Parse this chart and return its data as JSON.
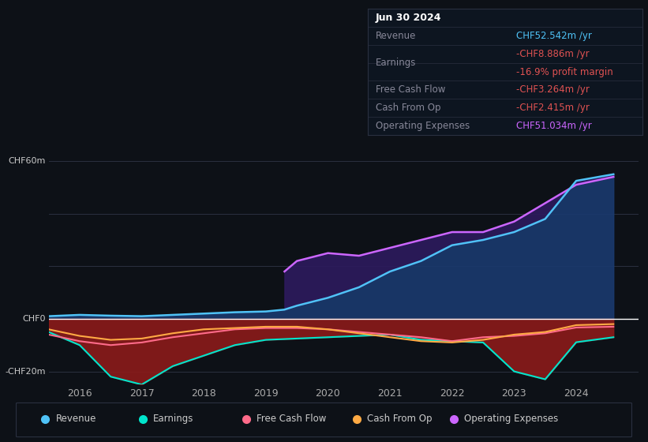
{
  "bg_color": "#0d1117",
  "plot_bg_color": "#0d1117",
  "ylim": [
    -25,
    70
  ],
  "xlim": [
    2015.5,
    2025.0
  ],
  "xticks": [
    2016,
    2017,
    2018,
    2019,
    2020,
    2021,
    2022,
    2023,
    2024
  ],
  "grid_color": "#2a3040",
  "zero_line_color": "#ffffff",
  "info_box": {
    "title": "Jun 30 2024",
    "title_color": "#ffffff",
    "rows": [
      {
        "label": "Revenue",
        "value": "CHF52.542m /yr",
        "value_color": "#4fc3f7"
      },
      {
        "label": "Earnings",
        "value": "-CHF8.886m /yr",
        "value_color": "#e05252"
      },
      {
        "label": "",
        "value": "-16.9% profit margin",
        "value_color": "#e05252"
      },
      {
        "label": "Free Cash Flow",
        "value": "-CHF3.264m /yr",
        "value_color": "#e05252"
      },
      {
        "label": "Cash From Op",
        "value": "-CHF2.415m /yr",
        "value_color": "#e05252"
      },
      {
        "label": "Operating Expenses",
        "value": "CHF51.034m /yr",
        "value_color": "#cc66ff"
      }
    ],
    "label_color": "#888899",
    "bg_color": "#0d1520",
    "border_color": "#2a3040"
  },
  "series": {
    "revenue": {
      "color": "#4fc3f7",
      "fill_color": "#1a3a6e",
      "label": "Revenue",
      "years": [
        2015.5,
        2016.0,
        2016.5,
        2017.0,
        2017.5,
        2018.0,
        2018.5,
        2019.0,
        2019.3,
        2019.5,
        2020.0,
        2020.5,
        2021.0,
        2021.5,
        2022.0,
        2022.5,
        2023.0,
        2023.5,
        2024.0,
        2024.6
      ],
      "values": [
        1.0,
        1.5,
        1.2,
        1.0,
        1.5,
        2.0,
        2.5,
        2.8,
        3.5,
        5.0,
        8.0,
        12.0,
        18.0,
        22.0,
        28.0,
        30.0,
        33.0,
        38.0,
        52.5,
        55.0
      ]
    },
    "earnings": {
      "color": "#00e5cc",
      "label": "Earnings",
      "years": [
        2015.5,
        2016.0,
        2016.5,
        2017.0,
        2017.5,
        2018.0,
        2018.5,
        2019.0,
        2019.5,
        2020.0,
        2020.5,
        2021.0,
        2021.5,
        2022.0,
        2022.5,
        2023.0,
        2023.5,
        2024.0,
        2024.6
      ],
      "values": [
        -5.0,
        -10.0,
        -22.0,
        -25.0,
        -18.0,
        -14.0,
        -10.0,
        -8.0,
        -7.5,
        -7.0,
        -6.5,
        -6.0,
        -8.0,
        -8.5,
        -9.0,
        -20.0,
        -23.0,
        -8.9,
        -7.0
      ]
    },
    "free_cash_flow": {
      "color": "#ff6b8a",
      "label": "Free Cash Flow",
      "years": [
        2015.5,
        2016.0,
        2016.5,
        2017.0,
        2017.5,
        2018.0,
        2018.5,
        2019.0,
        2019.5,
        2020.0,
        2020.5,
        2021.0,
        2021.5,
        2022.0,
        2022.5,
        2023.0,
        2023.5,
        2024.0,
        2024.6
      ],
      "values": [
        -6.0,
        -8.5,
        -10.0,
        -9.0,
        -7.0,
        -5.5,
        -4.0,
        -3.5,
        -3.5,
        -4.0,
        -5.0,
        -6.0,
        -7.0,
        -8.5,
        -7.0,
        -6.5,
        -5.5,
        -3.3,
        -3.0
      ]
    },
    "cash_from_op": {
      "color": "#ffaa44",
      "label": "Cash From Op",
      "years": [
        2015.5,
        2016.0,
        2016.5,
        2017.0,
        2017.5,
        2018.0,
        2018.5,
        2019.0,
        2019.5,
        2020.0,
        2020.5,
        2021.0,
        2021.5,
        2022.0,
        2022.5,
        2023.0,
        2023.5,
        2024.0,
        2024.6
      ],
      "values": [
        -4.0,
        -6.5,
        -8.0,
        -7.5,
        -5.5,
        -4.0,
        -3.5,
        -3.0,
        -3.0,
        -4.0,
        -5.5,
        -7.0,
        -8.5,
        -9.0,
        -8.0,
        -6.0,
        -5.0,
        -2.4,
        -2.0
      ]
    },
    "operating_expenses": {
      "color": "#cc66ff",
      "fill_color": "#2d1a5e",
      "label": "Operating Expenses",
      "years": [
        2019.3,
        2019.5,
        2020.0,
        2020.5,
        2021.0,
        2021.5,
        2022.0,
        2022.5,
        2023.0,
        2023.5,
        2024.0,
        2024.6
      ],
      "values": [
        18.0,
        22.0,
        25.0,
        24.0,
        27.0,
        30.0,
        33.0,
        33.0,
        37.0,
        44.0,
        51.0,
        54.0
      ]
    }
  },
  "legend_items": [
    {
      "label": "Revenue",
      "color": "#4fc3f7"
    },
    {
      "label": "Earnings",
      "color": "#00e5cc"
    },
    {
      "label": "Free Cash Flow",
      "color": "#ff6b8a"
    },
    {
      "label": "Cash From Op",
      "color": "#ffaa44"
    },
    {
      "label": "Operating Expenses",
      "color": "#cc66ff"
    }
  ]
}
